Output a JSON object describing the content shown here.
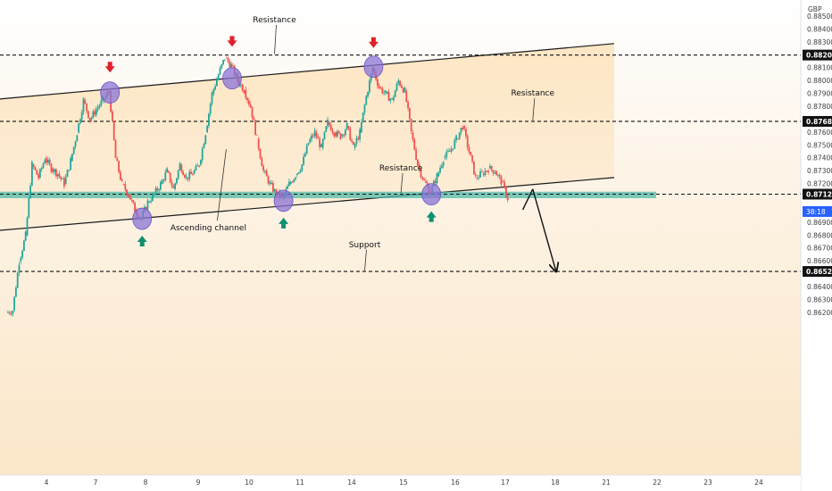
{
  "chart_data": {
    "type": "candlestick",
    "currency": "GBP",
    "price_ticks": [
      0.885,
      0.884,
      0.883,
      0.882,
      0.881,
      0.88,
      0.879,
      0.878,
      0.877,
      0.876,
      0.875,
      0.874,
      0.873,
      0.872,
      0.871,
      0.87,
      0.869,
      0.868,
      0.867,
      0.866,
      0.865,
      0.864,
      0.863,
      0.862
    ],
    "price_tick_labels": [
      "0.88500",
      "0.88400",
      "0.88300",
      "0.88200",
      "0.88100",
      "0.88000",
      "0.87900",
      "0.87800",
      "0.87700",
      "0.87600",
      "0.87500",
      "0.87400",
      "0.87300",
      "0.87200",
      "0.87100",
      "0.87000",
      "0.86900",
      "0.86800",
      "0.86700",
      "0.86600",
      "0.86500",
      "0.86400",
      "0.86300",
      "0.86200"
    ],
    "x_axis_labels": [
      {
        "label": "4",
        "day": 4
      },
      {
        "label": "7",
        "day": 7
      },
      {
        "label": "8",
        "day": 8
      },
      {
        "label": "9",
        "day": 9
      },
      {
        "label": "10",
        "day": 10
      },
      {
        "label": "11",
        "day": 11
      },
      {
        "label": "14",
        "day": 14
      },
      {
        "label": "15",
        "day": 15
      },
      {
        "label": "16",
        "day": 16
      },
      {
        "label": "17",
        "day": 17
      },
      {
        "label": "18",
        "day": 18
      },
      {
        "label": "21",
        "day": 21
      },
      {
        "label": "22",
        "day": 22
      },
      {
        "label": "23",
        "day": 23
      },
      {
        "label": "24",
        "day": 24
      }
    ],
    "horizontal_levels": [
      {
        "label": "0.88201",
        "value": 0.88201
      },
      {
        "label": "0.87686",
        "value": 0.87686
      },
      {
        "label": "0.87121",
        "value": 0.87121
      },
      {
        "label": "0.86521",
        "value": 0.86521
      }
    ],
    "current_price_timer": "38:18",
    "support_zone": {
      "low": 0.8709,
      "high": 0.8714
    },
    "channel": {
      "upper": {
        "start_price": 0.8786,
        "end_price": 0.8829
      },
      "lower": {
        "start_price": 0.8684,
        "end_price": 0.8725
      }
    },
    "price_path": [
      [
        0,
        0.862
      ],
      [
        1,
        0.8622
      ],
      [
        2,
        0.866
      ],
      [
        3,
        0.868
      ],
      [
        4,
        0.8735
      ],
      [
        5,
        0.8725
      ],
      [
        6,
        0.874
      ],
      [
        7,
        0.8732
      ],
      [
        8,
        0.8728
      ],
      [
        9,
        0.872
      ],
      [
        10,
        0.8738
      ],
      [
        11,
        0.876
      ],
      [
        12,
        0.8785
      ],
      [
        13,
        0.877
      ],
      [
        14,
        0.8778
      ],
      [
        15,
        0.8785
      ],
      [
        16,
        0.8792
      ],
      [
        17,
        0.874
      ],
      [
        18,
        0.872
      ],
      [
        19,
        0.8712
      ],
      [
        20,
        0.87
      ],
      [
        21,
        0.8693
      ],
      [
        22,
        0.8706
      ],
      [
        23,
        0.8712
      ],
      [
        24,
        0.872
      ],
      [
        25,
        0.873
      ],
      [
        26,
        0.8716
      ],
      [
        27,
        0.8735
      ],
      [
        28,
        0.8725
      ],
      [
        29,
        0.8728
      ],
      [
        30,
        0.8735
      ],
      [
        31,
        0.876
      ],
      [
        32,
        0.879
      ],
      [
        33,
        0.8805
      ],
      [
        34,
        0.8818
      ],
      [
        35,
        0.8812
      ],
      [
        36,
        0.88
      ],
      [
        37,
        0.8793
      ],
      [
        38,
        0.878
      ],
      [
        39,
        0.8755
      ],
      [
        40,
        0.873
      ],
      [
        41,
        0.872
      ],
      [
        42,
        0.8712
      ],
      [
        43,
        0.8709
      ],
      [
        44,
        0.872
      ],
      [
        45,
        0.8727
      ],
      [
        46,
        0.8735
      ],
      [
        47,
        0.8752
      ],
      [
        48,
        0.876
      ],
      [
        49,
        0.8748
      ],
      [
        50,
        0.8768
      ],
      [
        51,
        0.876
      ],
      [
        52,
        0.8757
      ],
      [
        53,
        0.8765
      ],
      [
        54,
        0.8748
      ],
      [
        55,
        0.876
      ],
      [
        56,
        0.8788
      ],
      [
        57,
        0.881
      ],
      [
        58,
        0.8795
      ],
      [
        59,
        0.879
      ],
      [
        60,
        0.8785
      ],
      [
        61,
        0.88
      ],
      [
        62,
        0.8792
      ],
      [
        63,
        0.876
      ],
      [
        64,
        0.8735
      ],
      [
        65,
        0.8722
      ],
      [
        66,
        0.8714
      ],
      [
        67,
        0.8726
      ],
      [
        68,
        0.874
      ],
      [
        69,
        0.8745
      ],
      [
        70,
        0.8755
      ],
      [
        71,
        0.8765
      ],
      [
        72,
        0.8745
      ],
      [
        73,
        0.8725
      ],
      [
        74,
        0.8728
      ],
      [
        75,
        0.8732
      ],
      [
        76,
        0.873
      ],
      [
        77,
        0.8722
      ],
      [
        78,
        0.8709
      ]
    ],
    "circles": [
      {
        "index": 16,
        "price": 0.8791
      },
      {
        "index": 21,
        "price": 0.8693
      },
      {
        "index": 35,
        "price": 0.8802
      },
      {
        "index": 43,
        "price": 0.8707
      },
      {
        "index": 57,
        "price": 0.8811
      },
      {
        "index": 66,
        "price": 0.8712
      }
    ],
    "markers": [
      {
        "index": 16,
        "dir": "down",
        "price": 0.8792
      },
      {
        "index": 35,
        "dir": "down",
        "price": 0.8812
      },
      {
        "index": 57,
        "dir": "down",
        "price": 0.8811
      },
      {
        "index": 21,
        "dir": "up",
        "price": 0.8693
      },
      {
        "index": 43,
        "dir": "up",
        "price": 0.8707
      },
      {
        "index": 66,
        "dir": "up",
        "price": 0.8712
      }
    ],
    "projection": [
      {
        "x_day": 17.35,
        "price": 0.87
      },
      {
        "x_day": 17.55,
        "price": 0.8716
      },
      {
        "x_day": 18.05,
        "price": 0.8652
      }
    ],
    "annotations": [
      {
        "text": "Resistance",
        "anchor_day": 10.5,
        "anchor_price": 0.88455
      },
      {
        "text": "Resistance",
        "anchor_day": 17.55,
        "anchor_price": 0.87885
      },
      {
        "text": "Resistance",
        "anchor_day": 14.95,
        "anchor_price": 0.87305
      },
      {
        "text": "Ascending channel",
        "anchor_day": 9.2,
        "anchor_price": 0.8684
      },
      {
        "text": "Support",
        "anchor_day": 14.25,
        "anchor_price": 0.8671
      }
    ]
  }
}
